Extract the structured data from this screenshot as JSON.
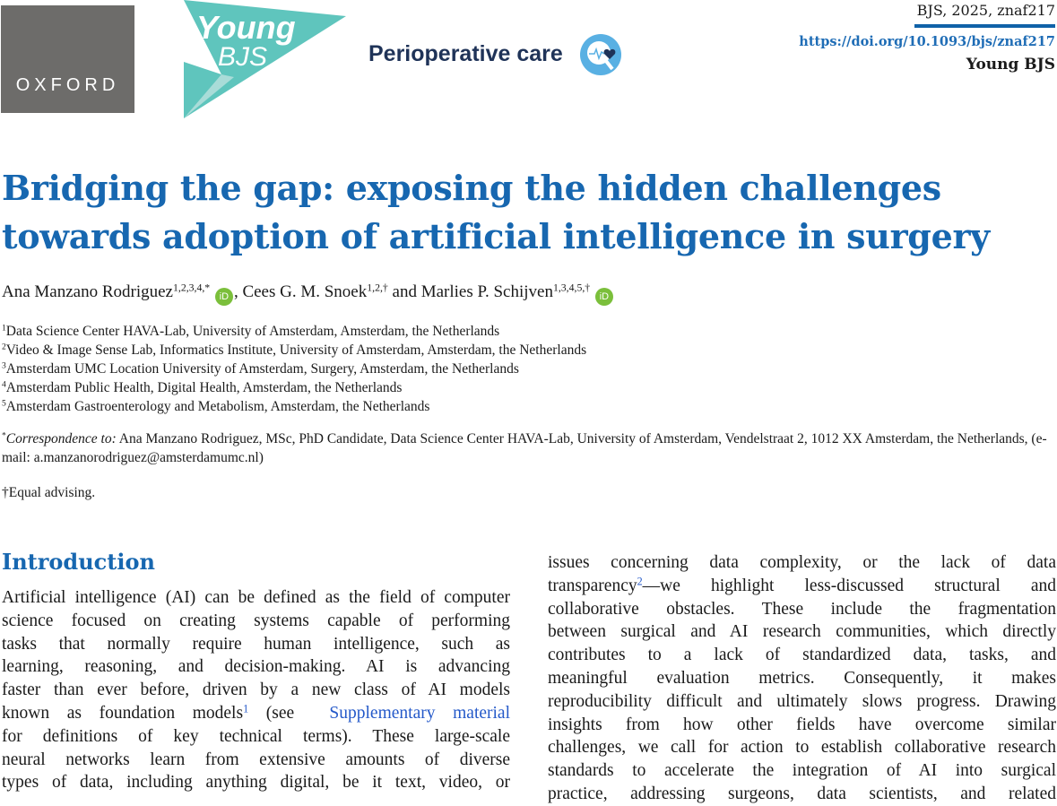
{
  "header": {
    "publisher_logo": "OXFORD",
    "series_logo": {
      "line1": "Young",
      "line2": "BJS"
    },
    "section": "Perioperative care",
    "section_icon": "magnifier-heartbeat-heart-icon",
    "citation": "BJS, 2025, znaf217",
    "doi": "https://doi.org/10.1093/bjs/znaf217",
    "journal_section": "Young BJS"
  },
  "article": {
    "title_lines": [
      "Bridging the gap: exposing the hidden challenges",
      "towards adoption of artificial intelligence in surgery"
    ],
    "authors": [
      {
        "name": "Ana Manzano Rodriguez",
        "marks": "1,2,3,4,*",
        "orcid": "iD"
      },
      {
        "name": "Cees G. M. Snoek",
        "marks": "1,2,†"
      },
      {
        "name": "Marlies P. Schijven",
        "marks": "1,3,4,5,†",
        "orcid": "iD"
      }
    ],
    "separator1": ", ",
    "separator2": " and ",
    "affiliations": [
      {
        "num": "1",
        "text": "Data Science Center HAVA-Lab, University of Amsterdam, Amsterdam, the Netherlands"
      },
      {
        "num": "2",
        "text": "Video & Image Sense Lab, Informatics Institute, University of Amsterdam, Amsterdam, the Netherlands"
      },
      {
        "num": "3",
        "text": "Amsterdam UMC Location University of Amsterdam, Surgery, Amsterdam, the Netherlands"
      },
      {
        "num": "4",
        "text": "Amsterdam Public Health, Digital Health, Amsterdam, the Netherlands"
      },
      {
        "num": "5",
        "text": "Amsterdam Gastroenterology and Metabolism, Amsterdam, the Netherlands"
      }
    ],
    "correspondence": {
      "mark": "*",
      "label": "Correspondence to:",
      "text": " Ana Manzano Rodriguez, MSc, PhD Candidate, Data Science Center HAVA-Lab, University of Amsterdam, Vendelstraat 2, 1012 XX Amsterdam, the Netherlands, (e-mail: a.manzanorodriguez@amsterdamumc.nl)"
    },
    "equal_advising": "†Equal advising.",
    "introduction": {
      "heading": "Introduction",
      "left_lines": [
        "Artificial intelligence (AI) can be defined as the field of computer",
        "science focused on creating systems capable of performing",
        "tasks that normally require human intelligence, such as",
        "learning, reasoning, and decision-making. AI is advancing",
        "faster than ever before, driven by a new class of AI models",
        "known as foundation models",
        "for definitions of key technical terms). These large-scale",
        "neural networks learn from extensive amounts of diverse",
        "types of data, including anything digital, be it text, video, or"
      ],
      "ref1": "1",
      "ref1_after": " (see ",
      "supp_link": "Supplementary material",
      "right_lines": [
        "issues concerning data complexity, or the lack of data",
        "transparency",
        "—we highlight less-discussed structural and",
        "collaborative obstacles. These include the fragmentation",
        "between surgical and AI research communities, which directly",
        "contributes to a lack of standardized data, tasks, and",
        "meaningful evaluation metrics. Consequently, it makes",
        "reproducibility difficult and ultimately slows progress. Drawing",
        "insights from how other fields have overcome similar",
        "challenges, we call for action to establish collaborative research",
        "standards to accelerate the integration of AI into surgical",
        "practice, addressing surgeons, data scientists, and related"
      ],
      "ref2": "2"
    }
  },
  "colors": {
    "title_blue": "#1767b0",
    "orcid_green": "#7bbf3b",
    "young_bjs_teal": "#5fc5bd",
    "oxford_grey": "#6d6c6a"
  }
}
